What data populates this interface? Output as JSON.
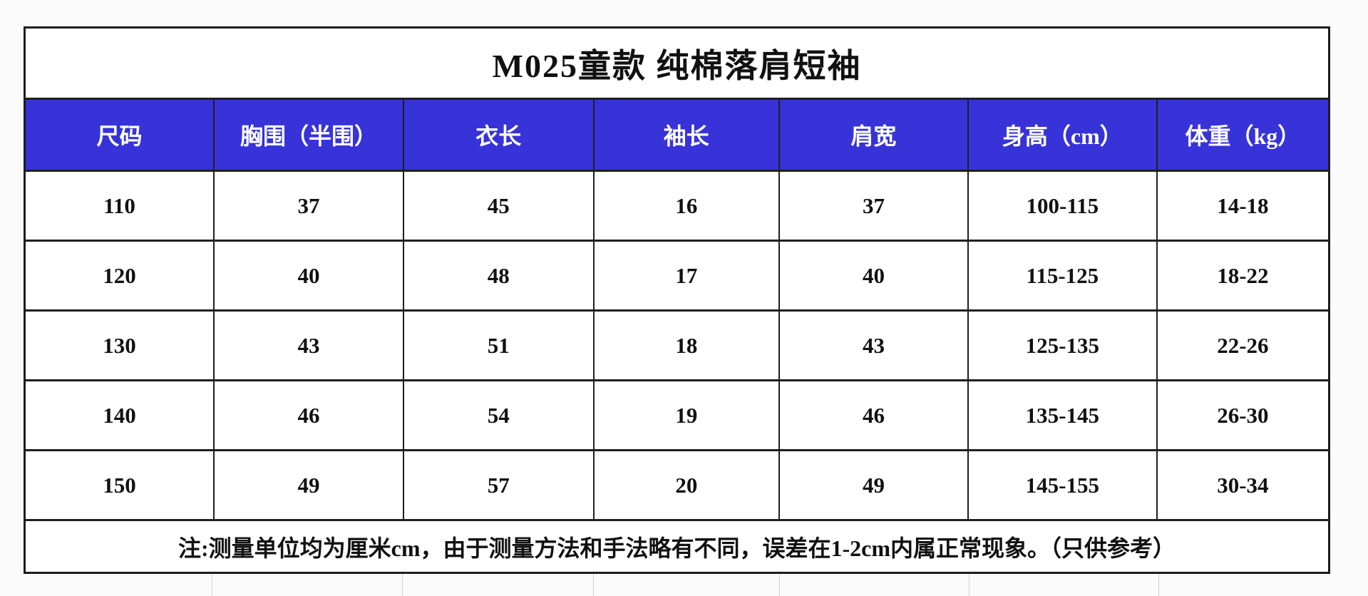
{
  "page": {
    "background_color": "#fbfbfb"
  },
  "table": {
    "title": "M025童款 纯棉落肩短袖",
    "header_bg": "#3733d8",
    "header_text_color": "#ffffff",
    "border_color": "#1f1f1f",
    "columns": [
      "尺码",
      "胸围（半围）",
      "衣长",
      "袖长",
      "肩宽",
      "身高（cm）",
      "体重（kg）"
    ],
    "rows": [
      [
        "110",
        "37",
        "45",
        "16",
        "37",
        "100-115",
        "14-18"
      ],
      [
        "120",
        "40",
        "48",
        "17",
        "40",
        "115-125",
        "18-22"
      ],
      [
        "130",
        "43",
        "51",
        "18",
        "43",
        "125-135",
        "22-26"
      ],
      [
        "140",
        "46",
        "54",
        "19",
        "46",
        "135-145",
        "26-30"
      ],
      [
        "150",
        "49",
        "57",
        "20",
        "49",
        "145-155",
        "30-34"
      ]
    ],
    "note": "注:测量单位均为厘米cm，由于测量方法和手法略有不同，误差在1-2cm内属正常现象。（只供参考）"
  }
}
